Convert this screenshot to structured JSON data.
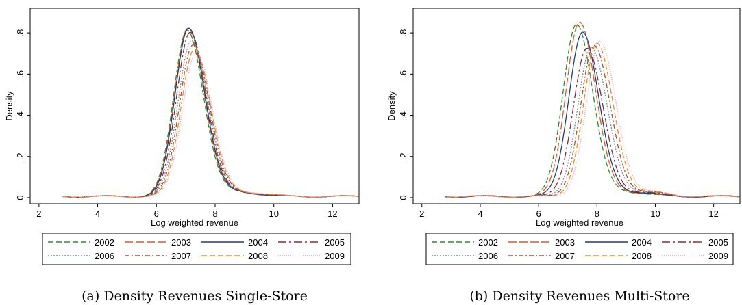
{
  "colors": {
    "2002": "#2a8a3c",
    "2003": "#e8541e",
    "2004": "#1f3f6e",
    "2005": "#8a2a3a",
    "2006": "#6e8f9a",
    "2007": "#a0503a",
    "2008": "#f08a24",
    "2009": "#e895d6"
  },
  "chart_data": [
    {
      "type": "line",
      "caption": "(a) Density Revenues Single-Store",
      "xlabel": "Log weighted revenue",
      "ylabel": "Density",
      "xlim": [
        1.7,
        12.9
      ],
      "ylim": [
        -0.03,
        0.92
      ],
      "xticks": [
        2,
        4,
        6,
        8,
        10,
        12
      ],
      "yticks": [
        0,
        0.2,
        0.4,
        0.6,
        0.8
      ],
      "ytick_labels": [
        "0",
        ".2",
        ".4",
        ".6",
        ".8"
      ],
      "legend": {
        "position": "bottom",
        "entries": [
          "2002",
          "2003",
          "2004",
          "2005",
          "2006",
          "2007",
          "2008",
          "2009"
        ]
      },
      "series": [
        {
          "name": "2002",
          "mu": 7.05,
          "peak": 0.81
        },
        {
          "name": "2003",
          "mu": 7.08,
          "peak": 0.82
        },
        {
          "name": "2004",
          "mu": 7.1,
          "peak": 0.82
        },
        {
          "name": "2005",
          "mu": 7.15,
          "peak": 0.8
        },
        {
          "name": "2006",
          "mu": 7.2,
          "peak": 0.76
        },
        {
          "name": "2007",
          "mu": 7.25,
          "peak": 0.74
        },
        {
          "name": "2008",
          "mu": 7.3,
          "peak": 0.72
        },
        {
          "name": "2009",
          "mu": 7.35,
          "peak": 0.7
        }
      ]
    },
    {
      "type": "line",
      "caption": "(b) Density Revenues Multi-Store",
      "xlabel": "Log weighted revenue",
      "ylabel": "Density",
      "xlim": [
        1.7,
        12.9
      ],
      "ylim": [
        -0.03,
        0.92
      ],
      "xticks": [
        2,
        4,
        6,
        8,
        10,
        12
      ],
      "yticks": [
        0,
        0.2,
        0.4,
        0.6,
        0.8
      ],
      "ytick_labels": [
        "0",
        ".2",
        ".4",
        ".6",
        ".8"
      ],
      "legend": {
        "position": "bottom",
        "entries": [
          "2002",
          "2003",
          "2004",
          "2005",
          "2006",
          "2007",
          "2008",
          "2009"
        ]
      },
      "series": [
        {
          "name": "2002",
          "mu": 7.3,
          "peak": 0.84
        },
        {
          "name": "2003",
          "mu": 7.4,
          "peak": 0.85
        },
        {
          "name": "2004",
          "mu": 7.5,
          "peak": 0.8
        },
        {
          "name": "2005",
          "mu": 7.65,
          "peak": 0.72
        },
        {
          "name": "2006",
          "mu": 7.8,
          "peak": 0.72
        },
        {
          "name": "2007",
          "mu": 7.9,
          "peak": 0.73
        },
        {
          "name": "2008",
          "mu": 8.0,
          "peak": 0.74
        },
        {
          "name": "2009",
          "mu": 8.1,
          "peak": 0.75
        }
      ]
    }
  ]
}
